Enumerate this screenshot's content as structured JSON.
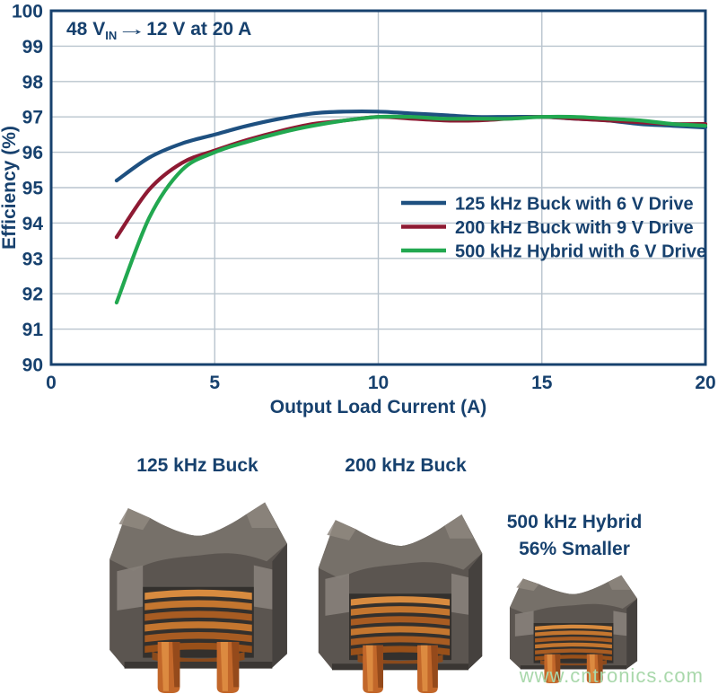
{
  "chart": {
    "annotation": {
      "pre": "48 V",
      "sub": "IN",
      "arrow": "→",
      "post": "12 V at 20 A"
    },
    "colors": {
      "frame": "#17416e",
      "text": "#17416e",
      "gridline": "#b9c4ce",
      "series_blue": "#1e5080",
      "series_red": "#8e1a33",
      "series_green": "#22a850"
    }
  },
  "chart_data": {
    "type": "line",
    "title": "48 VIN → 12 V at 20 A",
    "xlabel": "Output Load Current (A)",
    "ylabel": "Efficiency (%)",
    "xlim": [
      0,
      20
    ],
    "ylim": [
      90,
      100
    ],
    "x_ticks": [
      0,
      5,
      10,
      15,
      20
    ],
    "y_ticks": [
      90,
      91,
      92,
      93,
      94,
      95,
      96,
      97,
      98,
      99,
      100
    ],
    "grid": true,
    "legend_position": "inside-right-middle",
    "x": [
      2,
      3,
      4,
      5,
      6,
      7,
      8,
      9,
      10,
      11,
      12,
      13,
      14,
      15,
      16,
      17,
      18,
      19,
      20
    ],
    "series": [
      {
        "name": "125 kHz Buck with 6 V Drive",
        "color": "#1e5080",
        "values": [
          95.2,
          95.85,
          96.25,
          96.5,
          96.75,
          96.95,
          97.1,
          97.15,
          97.15,
          97.1,
          97.05,
          97.0,
          97.0,
          97.0,
          96.95,
          96.9,
          96.8,
          96.75,
          96.7
        ]
      },
      {
        "name": "200 kHz Buck with 9 V Drive",
        "color": "#8e1a33",
        "values": [
          93.6,
          94.95,
          95.7,
          96.05,
          96.35,
          96.6,
          96.8,
          96.9,
          97.0,
          96.95,
          96.9,
          96.9,
          96.95,
          97.0,
          96.95,
          96.9,
          96.85,
          96.8,
          96.8
        ]
      },
      {
        "name": "500 kHz Hybrid with 6 V Drive",
        "color": "#22a850",
        "values": [
          91.75,
          94.15,
          95.5,
          96.0,
          96.3,
          96.55,
          96.75,
          96.9,
          97.0,
          97.0,
          96.95,
          96.95,
          96.95,
          97.0,
          97.0,
          96.95,
          96.9,
          96.8,
          96.75
        ]
      }
    ]
  },
  "photos": {
    "items": [
      {
        "label": "125 kHz Buck"
      },
      {
        "label": "200 kHz Buck"
      },
      {
        "label_line1": "500 kHz Hybrid",
        "label_line2": "56% Smaller"
      }
    ],
    "watermark": "www.cntronics.com"
  }
}
